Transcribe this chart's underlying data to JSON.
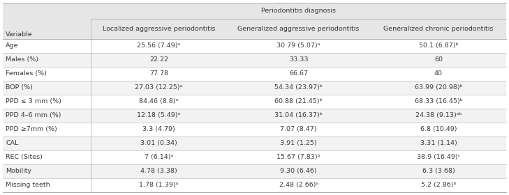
{
  "title_row": "Periodontitis diagnosis",
  "col_headers": [
    "Variable",
    "Localized aggressive periodontitis",
    "Generalized aggressive periodontitis",
    "Generalized chronic periodontitis"
  ],
  "rows": [
    [
      "Age",
      "25.56 (7.49)ᵃ",
      "30.79 (5.07)ᵃ",
      "50.1 (6.87)ᵇ"
    ],
    [
      "Males (%)",
      "22.22",
      "33.33",
      "60"
    ],
    [
      "Females (%)",
      "77.78",
      "66.67",
      "40"
    ],
    [
      "BOP (%)",
      "27.03 (12.25)ᵃ",
      "54.34 (23.97)ᵇ",
      "63.99 (20.98)ᵇ"
    ],
    [
      "PPD ≤ 3 mm (%)",
      "84.46 (8.8)ᵃ",
      "60.88 (21.45)ᵇ",
      "68.33 (16.45)ᵇ"
    ],
    [
      "PPD 4–6 mm (%)",
      "12.18 (5.49)ᵃ",
      "31.04 (16.37)ᵇ",
      "24.38 (9.13)ᵃᵇ"
    ],
    [
      "PPD ≥7mm (%)",
      "3.3 (4.79)",
      "7.07 (8.47)",
      "6.8 (10.49)"
    ],
    [
      "CAL",
      "3.01 (0.34)",
      "3.91 (1.25)",
      "3.31 (1.14)"
    ],
    [
      "REC (Sites)",
      "7 (6.14)ᵃ",
      "15.67 (7.83)ᵇ",
      "38.9 (16.49)ᶜ"
    ],
    [
      "Mobility",
      "4.78 (3.38)",
      "9.30 (6.46)",
      "6.3 (3.68)"
    ],
    [
      "Missing teeth",
      "1.78 (1.39)ᵃ",
      "2.48 (2.66)ᵃ",
      "5.2 (2.86)ᵇ"
    ]
  ],
  "bg_header": "#e6e6e6",
  "bg_white": "#ffffff",
  "bg_light": "#f2f2f2",
  "text_color": "#3a3a3a",
  "line_color": "#b0b0b0",
  "font_size": 6.8,
  "fig_width": 7.29,
  "fig_height": 2.8,
  "dpi": 100
}
